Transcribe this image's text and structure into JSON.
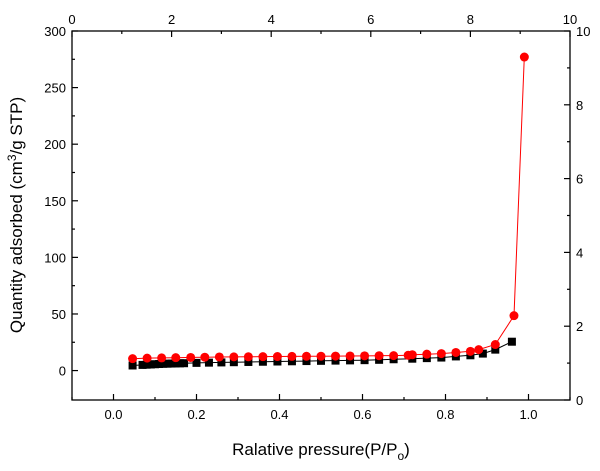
{
  "chart_data": {
    "type": "line",
    "xlabel": {
      "main": "Ralative pressure(P/P",
      "sub": "o",
      "end": ")"
    },
    "ylabel": {
      "main": "Quantity adsorbed (cm",
      "sup": "3",
      "end": "/g STP)"
    },
    "xlim": [
      -0.1,
      1.1
    ],
    "ylim": [
      -26,
      300
    ],
    "x_ticks": [
      "0.0",
      "0.2",
      "0.4",
      "0.6",
      "0.8",
      "1.0"
    ],
    "y_ticks": [
      "0",
      "50",
      "100",
      "150",
      "200",
      "250",
      "300"
    ],
    "top_ticks": [
      "0",
      "2",
      "4",
      "6",
      "8",
      "10"
    ],
    "right_ticks": [
      "0",
      "2",
      "4",
      "6",
      "8",
      "10"
    ],
    "grid": false,
    "series": [
      {
        "marker": "square",
        "color": "#000000",
        "x": [
          0.046,
          0.07,
          0.08,
          0.09,
          0.1,
          0.11,
          0.12,
          0.13,
          0.14,
          0.15,
          0.16,
          0.17,
          0.2,
          0.23,
          0.26,
          0.29,
          0.325,
          0.36,
          0.395,
          0.43,
          0.465,
          0.5,
          0.535,
          0.57,
          0.605,
          0.64,
          0.675,
          0.72,
          0.755,
          0.79,
          0.825,
          0.86,
          0.89,
          0.92,
          0.96
        ],
        "y": [
          4.5,
          5,
          5.2,
          5.4,
          5.6,
          5.8,
          6,
          6.1,
          6.2,
          6.3,
          6.4,
          6.5,
          6.8,
          7,
          7.2,
          7.4,
          7.6,
          7.8,
          8,
          8.2,
          8.4,
          8.6,
          8.8,
          9,
          9.2,
          9.5,
          10,
          10.5,
          11,
          11.5,
          12.5,
          13.5,
          15,
          18.5,
          25.5
        ]
      },
      {
        "marker": "circle",
        "color": "#ff0000",
        "x": [
          0.046,
          0.081,
          0.116,
          0.15,
          0.186,
          0.22,
          0.255,
          0.29,
          0.325,
          0.36,
          0.395,
          0.43,
          0.465,
          0.5,
          0.535,
          0.57,
          0.605,
          0.64,
          0.675,
          0.71,
          0.72,
          0.755,
          0.79,
          0.825,
          0.86,
          0.88,
          0.92,
          0.965,
          0.99
        ],
        "y": [
          10.5,
          11,
          11.2,
          11.4,
          11.6,
          11.8,
          12,
          12.1,
          12.2,
          12.3,
          12.4,
          12.5,
          12.6,
          12.7,
          12.8,
          12.9,
          13,
          13.1,
          13.2,
          13.5,
          14,
          14.5,
          15,
          16,
          17,
          18.5,
          23,
          48.5,
          277
        ]
      }
    ]
  }
}
